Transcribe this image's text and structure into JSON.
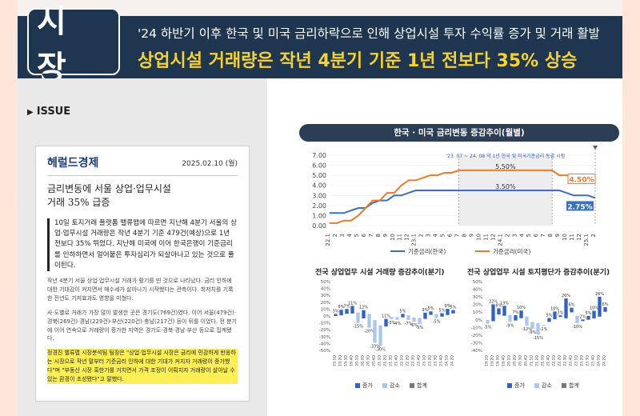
{
  "header": {
    "badge": "시 장",
    "subtitle": "'24 하반기 이후 한국 및 미국 금리하락으로 인해 상업시설 투자 수익률 증가 및 거래 활발",
    "headline": "상업시설 거래량은 작년 4분기 기준 1년 전보다 35% 상승"
  },
  "issue_label": "ISSUE",
  "news": {
    "logo": "헤럴드경제",
    "date": "2025.02.10 (월)",
    "title_line1": "금리변동에 서울 상업·업무시설",
    "title_line2": "거래 35% 급증",
    "lede": "10일 토지거래 플랫폼 밸류맵에 따르면 지난해 4분기 서울의 상업·업무시설 거래량은 작년 4분기 기준 479건(예상)으로 1년 전보다 35% 뛰었다. 지난해 미국에 이어 한국은행이 기준금리를 인하하면서 얼어붙은 투자심리가 되살아나고 있는 것으로 풀이된다.",
    "p1": "작년 4분기 서울 상업·업무시설 거래가 활기를 띤 것으로 나타났다. 금리 인하에 대한 기대감이 커지면서 매수세가 살아나기 시작했다는 관측이다. 최저치를 기록한 전년도 기저효과도 영향을 미쳤다.",
    "p2": "사·도별로 거래가 가장 많이 발생한 곳은 경기도(769건)였다. 이어 서울(479건)·경북(269건)·경남(229건)·부산(220건)·충남(217건) 등이 뒤를 이었다. 전 분기에 이어 연속으로 거래량이 증가한 지역은 경기도·경북·경남·부산 등으로 집계됐다.",
    "highlight": "정경진 밸류맵 시장분석팀 팀장은 \"상업·업무시설 시장은 금리에 민감하게 반응하는 시장으로 작년 말부터 기준금리 인하에 대한 기대가 커지자 거래량이 증가했다\"며 \"부동산 시장 혹한기를 거치면서 가격 조정이 이뤄지자 거래량이 살아날 수 있는 환경이 조성됐다\"고 말했다."
  },
  "chart_main_title": "한국 · 미국 금리변동 증감추이(월별)",
  "chart_bar1_title": "전국 상업업무 시설 거래량 증감추이(분기)",
  "chart_bar2_title": "전국 상업업무 시설 토지평단가 증감추이(분기)",
  "colors": {
    "korea": "#3a6fc4",
    "usa": "#f07a2a",
    "increase": "#2f62c9",
    "decrease": "#a9c6ee",
    "total": "#777777",
    "navy": "#1f3650"
  },
  "chart_data": [
    {
      "type": "line",
      "title": "한국 · 미국 금리변동 증감추이(월별)",
      "yticks": [
        "7.00",
        "6.00",
        "5.00",
        "4.00",
        "3.00",
        "2.00",
        "1.00",
        "0.00"
      ],
      "ylim": [
        0,
        7
      ],
      "x": [
        "22.1",
        "2",
        "3",
        "4",
        "5",
        "6",
        "7",
        "8",
        "9",
        "10",
        "11",
        "12",
        "23.1",
        "2",
        "3",
        "4",
        "5",
        "6",
        "7",
        "8",
        "9",
        "10",
        "11",
        "12",
        "24.1",
        "2",
        "3",
        "4",
        "5",
        "6",
        "7",
        "8",
        "9",
        "10",
        "11",
        "12",
        "25.1",
        "2"
      ],
      "series": [
        {
          "name": "기준금리(한국)",
          "values": [
            1.25,
            1.25,
            1.25,
            1.5,
            1.75,
            1.75,
            2.25,
            2.5,
            2.5,
            3.0,
            3.0,
            3.25,
            3.5,
            3.5,
            3.5,
            3.5,
            3.5,
            3.5,
            3.5,
            3.5,
            3.5,
            3.5,
            3.5,
            3.5,
            3.5,
            3.5,
            3.5,
            3.5,
            3.5,
            3.5,
            3.5,
            3.5,
            3.5,
            3.25,
            3.0,
            3.0,
            3.0,
            2.75
          ]
        },
        {
          "name": "기준금리(미국)",
          "values": [
            0.25,
            0.25,
            0.5,
            0.5,
            1.0,
            1.75,
            2.5,
            2.5,
            3.25,
            3.25,
            4.0,
            4.5,
            4.5,
            4.75,
            5.0,
            5.0,
            5.25,
            5.25,
            5.5,
            5.5,
            5.5,
            5.5,
            5.5,
            5.5,
            5.5,
            5.5,
            5.5,
            5.5,
            5.5,
            5.5,
            5.5,
            5.5,
            5.0,
            5.0,
            4.75,
            4.5,
            4.5,
            4.5
          ]
        }
      ],
      "annotations": [
        "'23. 07 ~ 24. 08 약 1년 한국 및 미국기준금리 동결 시점",
        "5.50%",
        "3.50%",
        "4.50%",
        "2.75%"
      ],
      "legend": "bottom"
    },
    {
      "type": "bar",
      "title": "전국 상업업무 시설 거래량 증감추이(분기)",
      "yticks": [
        "50%",
        "40%",
        "30%",
        "20%",
        "10%",
        "0%",
        "-10%",
        "-20%",
        "-30%",
        "-40%",
        "-50%"
      ],
      "ylim": [
        -50,
        50
      ],
      "categories": [
        "19.1Q",
        "19.2Q",
        "19.3Q",
        "19.4Q",
        "20.1Q",
        "20.2Q",
        "20.3Q",
        "20.4Q",
        "21.1Q",
        "21.2Q",
        "21.3Q",
        "21.4Q",
        "22.1Q",
        "22.2Q",
        "22.3Q",
        "22.4Q",
        "23.1Q",
        "23.2Q",
        "23.3Q",
        "23.4Q",
        "24.1Q",
        "24.2Q"
      ],
      "values": [
        3,
        8,
        7,
        11,
        -15,
        12,
        -20,
        -33,
        -30,
        11,
        -3,
        -4,
        5,
        -7,
        -6,
        -9,
        9,
        5,
        -5,
        5,
        9,
        5
      ],
      "labels": [
        "3%",
        "8%",
        "7%",
        "11%",
        "-15%",
        "12%",
        "-20%",
        "-33%",
        "-30%",
        "11%",
        "-3%",
        "-4%",
        "5%",
        "-7%",
        "-6%",
        "-9%",
        "9%",
        "5%",
        "-5%",
        "5%",
        "9%",
        "5%"
      ],
      "legend_items": [
        "증가",
        "감소",
        "합계"
      ]
    },
    {
      "type": "bar",
      "title": "전국 상업업무 시설 토지평단가 증감추이(분기)",
      "yticks": [
        "50%",
        "40%",
        "30%",
        "20%",
        "10%",
        "0%",
        "-10%",
        "-20%",
        "-30%",
        "-40%"
      ],
      "ylim": [
        -40,
        50
      ],
      "categories": [
        "19.1Q",
        "19.2Q",
        "19.3Q",
        "19.4Q",
        "20.1Q",
        "20.2Q",
        "20.3Q",
        "20.4Q",
        "21.1Q",
        "21.2Q",
        "21.3Q",
        "21.4Q",
        "22.1Q",
        "22.2Q",
        "22.3Q",
        "22.4Q",
        "23.1Q",
        "23.2Q",
        "23.3Q",
        "23.4Q",
        "24.1Q",
        "24.2Q"
      ],
      "values": [
        -5,
        22,
        8,
        13,
        -9,
        7,
        10,
        -12,
        -9,
        -15,
        -1,
        5,
        10,
        2,
        26,
        6,
        -10,
        2,
        5,
        10,
        26,
        6
      ],
      "labels": [
        "-5%",
        "22%",
        "8%",
        "13%",
        "-9%",
        "7%",
        "10%",
        "-12%",
        "-9%",
        "-15%",
        "-1%",
        "5%",
        "10%",
        "2%",
        "26%",
        "6%",
        "-10%",
        "2%",
        "5%",
        "10%",
        "26%",
        "6%"
      ],
      "legend_items": [
        "증가",
        "감소",
        "합계"
      ]
    }
  ]
}
